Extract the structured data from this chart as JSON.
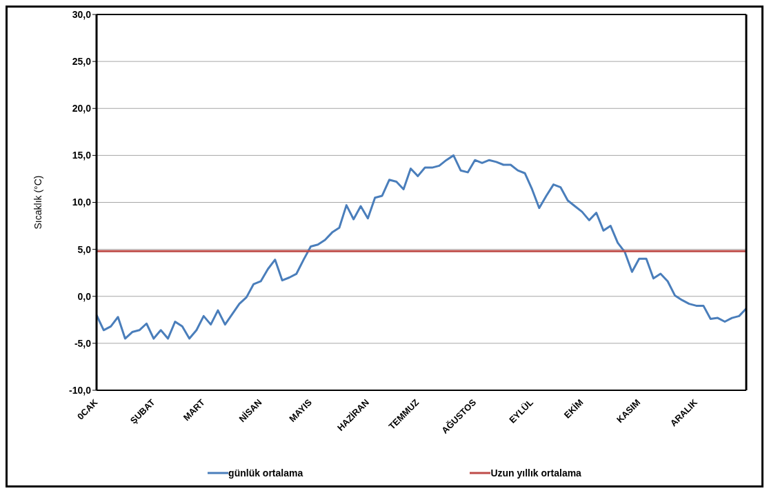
{
  "chart_data": {
    "type": "line",
    "ylabel": "Sıcaklık (°C)",
    "categories": [
      "0CAK",
      null,
      null,
      null,
      null,
      null,
      null,
      null,
      "ŞUBAT",
      null,
      null,
      null,
      null,
      null,
      null,
      "MART",
      null,
      null,
      null,
      null,
      null,
      null,
      null,
      "NİSAN",
      null,
      null,
      null,
      null,
      null,
      null,
      "MAYIS",
      null,
      null,
      null,
      null,
      null,
      null,
      null,
      "HAZİRAN",
      null,
      null,
      null,
      null,
      null,
      null,
      "TEMMUZ",
      null,
      null,
      null,
      null,
      null,
      null,
      null,
      "AĞUSTOS",
      null,
      null,
      null,
      null,
      null,
      null,
      null,
      "EYLÜL",
      null,
      null,
      null,
      null,
      null,
      null,
      "EKİM",
      null,
      null,
      null,
      null,
      null,
      null,
      null,
      "KASIM",
      null,
      null,
      null,
      null,
      null,
      null,
      null,
      "ARALIK",
      null,
      null,
      null,
      null,
      null,
      null,
      null
    ],
    "ylim": [
      -10,
      30
    ],
    "yticks": [
      {
        "value": -10,
        "label": "-10,0"
      },
      {
        "value": -5,
        "label": "-5,0"
      },
      {
        "value": 0,
        "label": "0,0"
      },
      {
        "value": 5,
        "label": "5,0"
      },
      {
        "value": 10,
        "label": "10,0"
      },
      {
        "value": 15,
        "label": "15,0"
      },
      {
        "value": 20,
        "label": "20,0"
      },
      {
        "value": 25,
        "label": "25,0"
      },
      {
        "value": 30,
        "label": "30,0"
      }
    ],
    "grid": "y",
    "legend": "bottom",
    "marker": "none",
    "line_style": "solid",
    "series": [
      {
        "name": "günlük ortalama",
        "color": "#4a7ebb",
        "values": [
          -2.0,
          -3.6,
          -3.2,
          -2.2,
          -4.5,
          -3.8,
          -3.6,
          -2.9,
          -4.5,
          -3.6,
          -4.5,
          -2.7,
          -3.2,
          -4.5,
          -3.6,
          -2.1,
          -3.0,
          -1.5,
          -3.0,
          -1.9,
          -0.8,
          -0.1,
          1.3,
          1.6,
          2.9,
          3.9,
          1.7,
          2.0,
          2.4,
          3.9,
          5.3,
          5.5,
          6.0,
          6.8,
          7.3,
          9.7,
          8.2,
          9.6,
          8.3,
          10.5,
          10.7,
          12.4,
          12.2,
          11.4,
          13.6,
          12.8,
          13.7,
          13.7,
          13.9,
          14.5,
          15.0,
          13.4,
          13.2,
          14.5,
          14.2,
          14.5,
          14.3,
          14.0,
          14.0,
          13.4,
          13.1,
          11.4,
          9.4,
          10.7,
          11.9,
          11.6,
          10.2,
          9.6,
          9.0,
          8.1,
          8.9,
          7.0,
          7.5,
          5.7,
          4.7,
          2.6,
          4.0,
          4.0,
          1.9,
          2.4,
          1.6,
          0.1,
          -0.4,
          -0.8,
          -1.0,
          -1.0,
          -2.4,
          -2.3,
          -2.7,
          -2.3,
          -2.1,
          -1.3
        ]
      },
      {
        "name": "Uzun yıllık ortalama",
        "color": "#be4b48",
        "values": [
          4.8,
          4.8,
          4.8,
          4.8,
          4.8,
          4.8,
          4.8,
          4.8,
          4.8,
          4.8,
          4.8,
          4.8,
          4.8,
          4.8,
          4.8,
          4.8,
          4.8,
          4.8,
          4.8,
          4.8,
          4.8,
          4.8,
          4.8,
          4.8,
          4.8,
          4.8,
          4.8,
          4.8,
          4.8,
          4.8,
          4.8,
          4.8,
          4.8,
          4.8,
          4.8,
          4.8,
          4.8,
          4.8,
          4.8,
          4.8,
          4.8,
          4.8,
          4.8,
          4.8,
          4.8,
          4.8,
          4.8,
          4.8,
          4.8,
          4.8,
          4.8,
          4.8,
          4.8,
          4.8,
          4.8,
          4.8,
          4.8,
          4.8,
          4.8,
          4.8,
          4.8,
          4.8,
          4.8,
          4.8,
          4.8,
          4.8,
          4.8,
          4.8,
          4.8,
          4.8,
          4.8,
          4.8,
          4.8,
          4.8,
          4.8,
          4.8,
          4.8,
          4.8,
          4.8,
          4.8,
          4.8,
          4.8,
          4.8,
          4.8,
          4.8,
          4.8,
          4.8,
          4.8,
          4.8,
          4.8,
          4.8,
          4.8
        ]
      }
    ]
  }
}
